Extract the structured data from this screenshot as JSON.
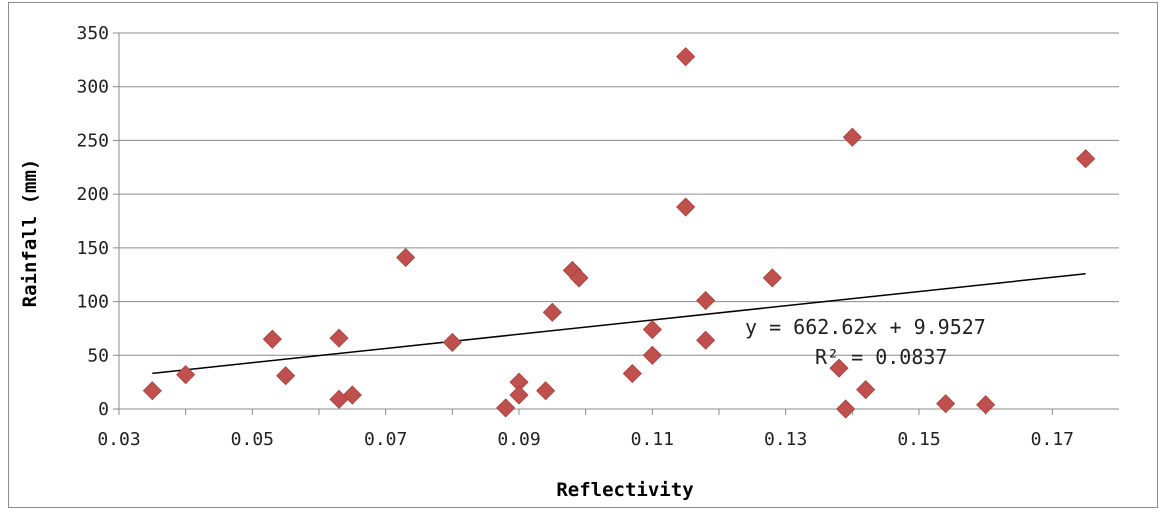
{
  "chart_data": {
    "type": "scatter",
    "title": "",
    "xlabel": "Reflectivity",
    "ylabel": "Rainfall (mm)",
    "xlim": [
      0.03,
      0.18
    ],
    "ylim": [
      0,
      350
    ],
    "x_ticks": [
      "0.03",
      "0.05",
      "0.07",
      "0.09",
      "0.11",
      "0.13",
      "0.15",
      "0.17"
    ],
    "y_ticks": [
      "0",
      "50",
      "100",
      "150",
      "200",
      "250",
      "300",
      "350"
    ],
    "grid": true,
    "legend": "none",
    "marker": "diamond",
    "marker_color": "#c0504d",
    "points": [
      {
        "x": 0.035,
        "y": 17
      },
      {
        "x": 0.04,
        "y": 32
      },
      {
        "x": 0.053,
        "y": 65
      },
      {
        "x": 0.055,
        "y": 31
      },
      {
        "x": 0.063,
        "y": 66
      },
      {
        "x": 0.063,
        "y": 9
      },
      {
        "x": 0.065,
        "y": 13
      },
      {
        "x": 0.073,
        "y": 141
      },
      {
        "x": 0.08,
        "y": 62
      },
      {
        "x": 0.088,
        "y": 1
      },
      {
        "x": 0.09,
        "y": 25
      },
      {
        "x": 0.09,
        "y": 13
      },
      {
        "x": 0.094,
        "y": 17
      },
      {
        "x": 0.095,
        "y": 90
      },
      {
        "x": 0.098,
        "y": 129
      },
      {
        "x": 0.099,
        "y": 122
      },
      {
        "x": 0.107,
        "y": 33
      },
      {
        "x": 0.11,
        "y": 74
      },
      {
        "x": 0.11,
        "y": 50
      },
      {
        "x": 0.115,
        "y": 328
      },
      {
        "x": 0.115,
        "y": 188
      },
      {
        "x": 0.118,
        "y": 101
      },
      {
        "x": 0.118,
        "y": 64
      },
      {
        "x": 0.128,
        "y": 122
      },
      {
        "x": 0.138,
        "y": 38
      },
      {
        "x": 0.139,
        "y": 0
      },
      {
        "x": 0.14,
        "y": 253
      },
      {
        "x": 0.142,
        "y": 18
      },
      {
        "x": 0.154,
        "y": 5
      },
      {
        "x": 0.16,
        "y": 4
      },
      {
        "x": 0.175,
        "y": 233
      }
    ],
    "trendline": {
      "type": "linear",
      "slope": 662.62,
      "intercept": 9.9527,
      "x_range": [
        0.035,
        0.175
      ],
      "color": "#000000",
      "equation_label": "y = 662.62x + 9.9527",
      "r2_label": "R² = 0.0837"
    }
  }
}
